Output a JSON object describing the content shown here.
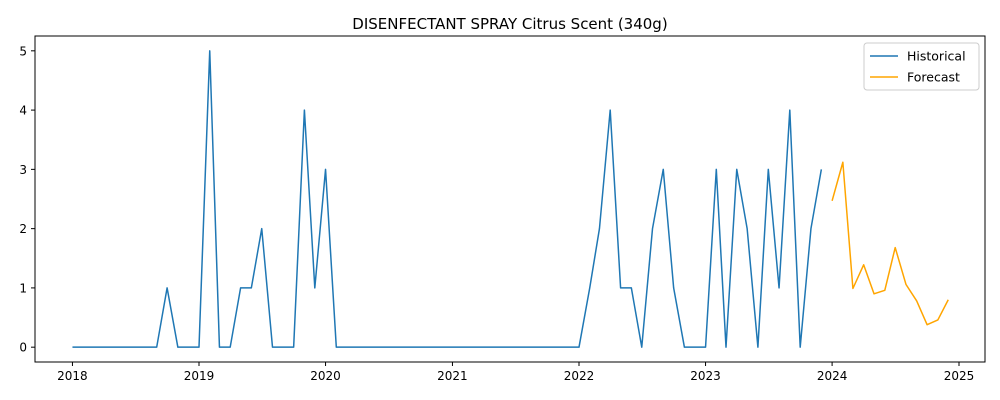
{
  "chart_data": {
    "type": "line",
    "title": "DISENFECTANT SPRAY Citrus Scent (340g)",
    "xlabel": "",
    "ylabel": "",
    "x_axis_type": "date",
    "xlim": [
      "2017-09-15",
      "2025-03-17"
    ],
    "ylim": [
      -0.25,
      5.25
    ],
    "x_ticks": [
      "2018",
      "2019",
      "2020",
      "2021",
      "2022",
      "2023",
      "2024",
      "2025"
    ],
    "x_tick_dates": [
      "2018-01-01",
      "2019-01-01",
      "2020-01-01",
      "2021-01-01",
      "2022-01-01",
      "2023-01-01",
      "2024-01-01",
      "2025-01-01"
    ],
    "y_ticks": [
      0,
      1,
      2,
      3,
      4,
      5
    ],
    "grid": false,
    "legend_position": "top-right",
    "series": [
      {
        "name": "Historical",
        "color": "#1f77b4",
        "x": [
          "2018-01",
          "2018-02",
          "2018-03",
          "2018-04",
          "2018-05",
          "2018-06",
          "2018-07",
          "2018-08",
          "2018-09",
          "2018-10",
          "2018-11",
          "2018-12",
          "2019-01",
          "2019-02",
          "2019-03",
          "2019-04",
          "2019-05",
          "2019-06",
          "2019-07",
          "2019-08",
          "2019-09",
          "2019-10",
          "2019-11",
          "2019-12",
          "2020-01",
          "2020-02",
          "2020-03",
          "2020-04",
          "2020-05",
          "2020-06",
          "2020-07",
          "2020-08",
          "2020-09",
          "2020-10",
          "2020-11",
          "2020-12",
          "2021-01",
          "2021-02",
          "2021-03",
          "2021-04",
          "2021-05",
          "2021-06",
          "2021-07",
          "2021-08",
          "2021-09",
          "2021-10",
          "2021-11",
          "2021-12",
          "2022-01",
          "2022-02",
          "2022-03",
          "2022-04",
          "2022-05",
          "2022-06",
          "2022-07",
          "2022-08",
          "2022-09",
          "2022-10",
          "2022-11",
          "2022-12",
          "2023-01",
          "2023-02",
          "2023-03",
          "2023-04",
          "2023-05",
          "2023-06",
          "2023-07",
          "2023-08",
          "2023-09",
          "2023-10",
          "2023-11",
          "2023-12"
        ],
        "values": [
          0,
          0,
          0,
          0,
          0,
          0,
          0,
          0,
          0,
          1,
          0,
          0,
          0,
          5,
          0,
          0,
          1,
          1,
          2,
          0,
          0,
          0,
          4,
          1,
          3,
          0,
          0,
          0,
          0,
          0,
          0,
          0,
          0,
          0,
          0,
          0,
          0,
          0,
          0,
          0,
          0,
          0,
          0,
          0,
          0,
          0,
          0,
          0,
          0,
          1,
          2,
          4,
          1,
          1,
          0,
          2,
          3,
          1,
          0,
          0,
          0,
          3,
          0,
          3,
          2,
          0,
          3,
          1,
          4,
          0,
          2,
          3
        ]
      },
      {
        "name": "Forecast",
        "color": "#ffa500",
        "x": [
          "2024-01",
          "2024-02",
          "2024-03",
          "2024-04",
          "2024-05",
          "2024-06",
          "2024-07",
          "2024-08",
          "2024-09",
          "2024-10",
          "2024-11",
          "2024-12"
        ],
        "values": [
          2.47,
          3.12,
          0.99,
          1.39,
          0.9,
          0.96,
          1.68,
          1.06,
          0.78,
          0.38,
          0.46,
          0.8
        ]
      }
    ]
  }
}
